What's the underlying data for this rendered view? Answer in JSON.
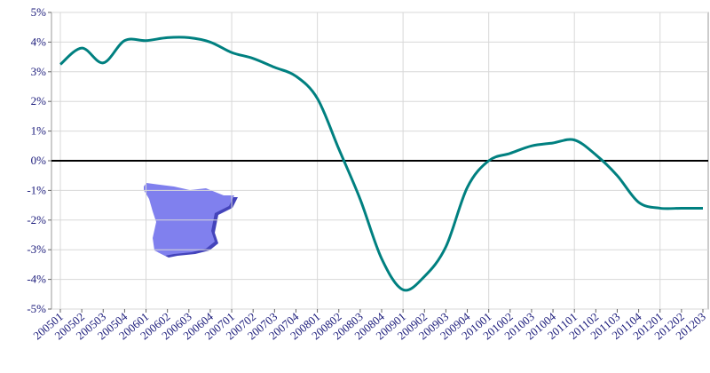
{
  "chart_data": {
    "type": "line",
    "categories": [
      "200501",
      "200502",
      "200503",
      "200504",
      "200601",
      "200602",
      "200603",
      "200604",
      "200701",
      "200702",
      "200703",
      "200704",
      "200801",
      "200802",
      "200803",
      "200804",
      "200901",
      "200902",
      "200903",
      "200904",
      "201001",
      "201002",
      "201003",
      "201004",
      "201101",
      "201102",
      "201103",
      "201104",
      "201201",
      "201202",
      "201203"
    ],
    "series": [
      {
        "name": "Spain",
        "color": "#008080",
        "values": [
          3.25,
          3.8,
          3.3,
          4.05,
          4.05,
          4.15,
          4.15,
          4.0,
          3.65,
          3.45,
          3.15,
          2.85,
          2.1,
          0.4,
          -1.3,
          -3.3,
          -4.35,
          -3.9,
          -2.9,
          -0.9,
          0.0,
          0.25,
          0.5,
          0.6,
          0.7,
          0.2,
          -0.5,
          -1.4,
          -1.6,
          -1.6,
          -1.6
        ]
      }
    ],
    "ylim": [
      -5,
      5
    ],
    "yticks": [
      {
        "value": -5,
        "label": "-5%"
      },
      {
        "value": -4,
        "label": "-4%"
      },
      {
        "value": -3,
        "label": "-3%"
      },
      {
        "value": -2,
        "label": "-2%"
      },
      {
        "value": -1,
        "label": "-1%"
      },
      {
        "value": 0,
        "label": "0%"
      },
      {
        "value": 1,
        "label": "1%"
      },
      {
        "value": 2,
        "label": "2%"
      },
      {
        "value": 3,
        "label": "3%"
      },
      {
        "value": 4,
        "label": "4%"
      },
      {
        "value": 5,
        "label": "5%"
      }
    ],
    "grid": true
  }
}
